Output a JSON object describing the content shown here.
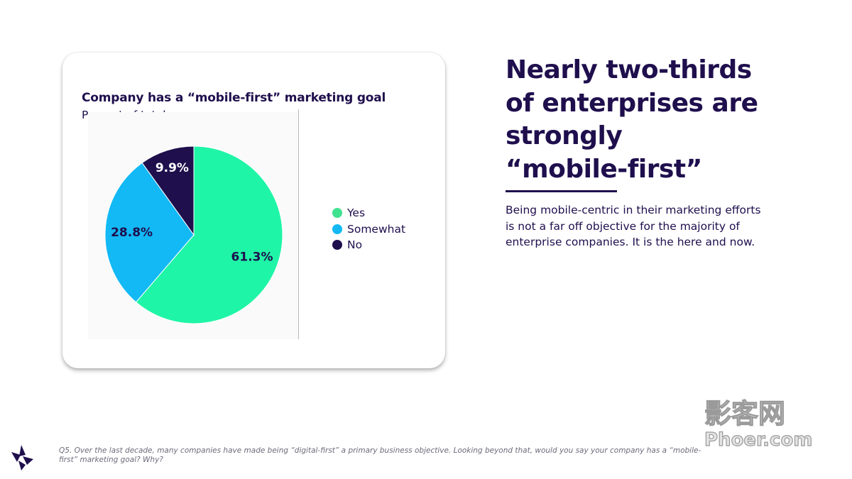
{
  "headline": {
    "lines": [
      "Nearly two-thirds",
      "of enterprises are",
      "strongly",
      "“mobile-first”"
    ]
  },
  "body_text": "Being mobile-centric in their marketing efforts is not a far off objective for the majority of enterprise companies. It is the here and now.",
  "footnote": "Q5. Over the last decade, many companies have made being “digital-first” a primary business objective. Looking beyond that, would you say your company has a “mobile-first” marketing goal? Why?",
  "watermark": {
    "chars": "影客网",
    "domain": "Phoer.com"
  },
  "colors": {
    "yes": "#1ff5a6",
    "somewhat": "#12b9f5",
    "no": "#1f0f4d",
    "text": "#1f0f4d"
  },
  "chart_data": {
    "type": "pie",
    "title": "Company has a “mobile-first” marketing goal",
    "subtitle": "Percent of total",
    "slices": [
      {
        "label": "Yes",
        "value": 61.3,
        "display": "61.3%",
        "color": "#1ff5a6"
      },
      {
        "label": "Somewhat",
        "value": 28.8,
        "display": "28.8%",
        "color": "#12b9f5"
      },
      {
        "label": "No",
        "value": 9.9,
        "display": "9.9%",
        "color": "#1f0f4d"
      }
    ],
    "legend": {
      "placement": "right",
      "entries": [
        {
          "label": "Yes",
          "color": "#41e28f"
        },
        {
          "label": "Somewhat",
          "color": "#12b9f5"
        },
        {
          "label": "No",
          "color": "#1f0f4d"
        }
      ]
    }
  }
}
